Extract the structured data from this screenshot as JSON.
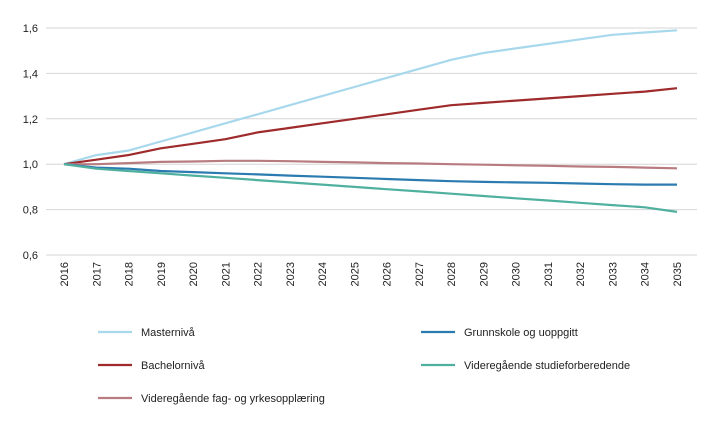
{
  "chart_data": {
    "type": "line",
    "title": "",
    "xlabel": "",
    "ylabel": "",
    "x": [
      "2016",
      "2017",
      "2018",
      "2019",
      "2020",
      "2021",
      "2022",
      "2023",
      "2024",
      "2025",
      "2026",
      "2027",
      "2028",
      "2029",
      "2030",
      "2031",
      "2032",
      "2033",
      "2034",
      "2035"
    ],
    "ylim": [
      0.6,
      1.6
    ],
    "yticks": [
      "0,6",
      "0,8",
      "1,0",
      "1,2",
      "1,4",
      "1,6"
    ],
    "ytick_values": [
      0.6,
      0.8,
      1.0,
      1.2,
      1.4,
      1.6
    ],
    "grid": true,
    "legend_position": "bottom",
    "series": [
      {
        "name": "Masternivå",
        "color": "#a8d8ec",
        "values": [
          1.0,
          1.04,
          1.06,
          1.1,
          1.14,
          1.18,
          1.22,
          1.26,
          1.3,
          1.34,
          1.38,
          1.42,
          1.46,
          1.49,
          1.51,
          1.53,
          1.55,
          1.57,
          1.58,
          1.59
        ]
      },
      {
        "name": "Bachelornivå",
        "color": "#9e2a2b",
        "values": [
          1.0,
          1.02,
          1.04,
          1.07,
          1.09,
          1.11,
          1.14,
          1.16,
          1.18,
          1.2,
          1.22,
          1.24,
          1.26,
          1.27,
          1.28,
          1.29,
          1.3,
          1.31,
          1.32,
          1.335
        ]
      },
      {
        "name": "Videregående fag- og yrkesopplæring",
        "color": "#b87c80",
        "values": [
          1.0,
          1.0,
          1.005,
          1.01,
          1.012,
          1.015,
          1.015,
          1.013,
          1.01,
          1.008,
          1.005,
          1.003,
          1.0,
          0.998,
          0.995,
          0.993,
          0.99,
          0.988,
          0.985,
          0.982
        ]
      },
      {
        "name": "Grunnskole og uoppgitt",
        "color": "#2b7bb0",
        "values": [
          1.0,
          0.985,
          0.98,
          0.97,
          0.965,
          0.96,
          0.955,
          0.95,
          0.945,
          0.94,
          0.935,
          0.93,
          0.925,
          0.922,
          0.92,
          0.918,
          0.915,
          0.912,
          0.91,
          0.91
        ]
      },
      {
        "name": "Videregående studieforberedende",
        "color": "#4fb09f",
        "values": [
          1.0,
          0.98,
          0.97,
          0.96,
          0.95,
          0.94,
          0.93,
          0.92,
          0.91,
          0.9,
          0.89,
          0.88,
          0.87,
          0.86,
          0.85,
          0.84,
          0.83,
          0.82,
          0.81,
          0.79
        ]
      }
    ]
  }
}
